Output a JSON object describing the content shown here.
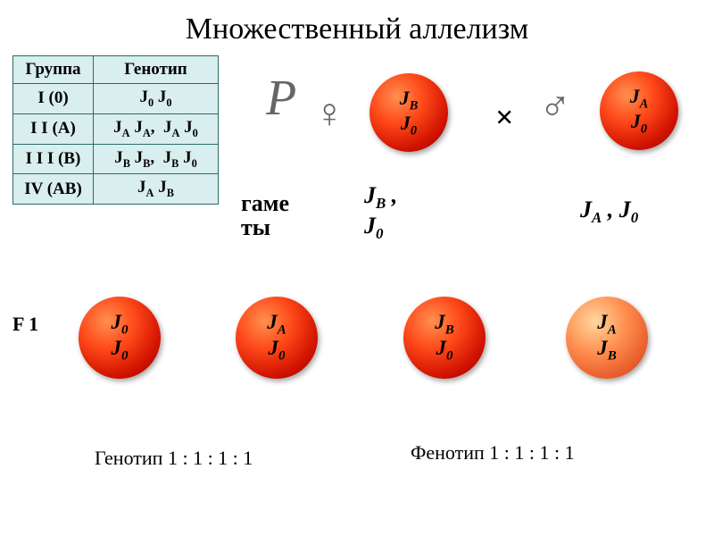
{
  "title": "Множественный аллелизм",
  "table": {
    "headers": [
      "Группа",
      "Генотип"
    ],
    "rows": [
      {
        "group": "I (0)",
        "geno_html": "J<span class='sub'>0</span> J<span class='sub'>0</span>"
      },
      {
        "group": "I I (A)",
        "geno_html": "J<span class='sub'>A</span> J<span class='sub'>A</span>,&nbsp;&nbsp;J<span class='sub'>A</span> J<span class='sub'>0</span>"
      },
      {
        "group": "I I I (B)",
        "geno_html": "J<span class='sub'>B</span> J<span class='sub'>B</span>,&nbsp;&nbsp;J<span class='sub'>B</span> J<span class='sub'>0</span>"
      },
      {
        "group": "IV (AB)",
        "geno_html": "J<span class='sub'>A</span> J<span class='sub'>B</span>"
      }
    ],
    "header_bg": "#d9eeee",
    "border_color": "#2b6b6b"
  },
  "symbols": {
    "P": "P",
    "female": "♀",
    "male": "♂",
    "cross": "×"
  },
  "parents": {
    "female": {
      "line1_html": "J<span class='sub'>B</span>",
      "line2_html": "J<span class='sub'>0</span>"
    },
    "male": {
      "line1_html": "J<span class='sub'>A</span>",
      "line2_html": "J<span class='sub'>0</span>"
    }
  },
  "gametes": {
    "label": "гаме\nты",
    "female_html": "J<span class='sub'>B</span> ,<br>J<span class='sub'>0</span>",
    "male_html": "J<span class='sub'>A</span> , J<span class='sub'>0</span>"
  },
  "f1": {
    "label": "F 1",
    "offspring": [
      {
        "line1_html": "J<span class='sub'>0</span>",
        "line2_html": "J<span class='sub'>0</span>",
        "light": false
      },
      {
        "line1_html": "J<span class='sub'>A</span>",
        "line2_html": "J<span class='sub'>0</span>",
        "light": false
      },
      {
        "line1_html": "J<span class='sub'>B</span>",
        "line2_html": "J<span class='sub'>0</span>",
        "light": false
      },
      {
        "line1_html": "J<span class='sub'>A</span>",
        "line2_html": "J<span class='sub'>B</span>",
        "light": true
      }
    ]
  },
  "ratios": {
    "genotype": "Генотип   1 : 1 : 1 : 1",
    "phenotype": "Фенотип  1 : 1 : 1 : 1"
  },
  "colors": {
    "ball_gradient_normal": [
      "#ff9050",
      "#ff4a1a",
      "#d11200",
      "#8a0a00"
    ],
    "ball_gradient_light": [
      "#ffd7a0",
      "#ff8f50",
      "#e85a2a",
      "#b33810"
    ],
    "title_color": "#000000",
    "background": "#ffffff"
  }
}
